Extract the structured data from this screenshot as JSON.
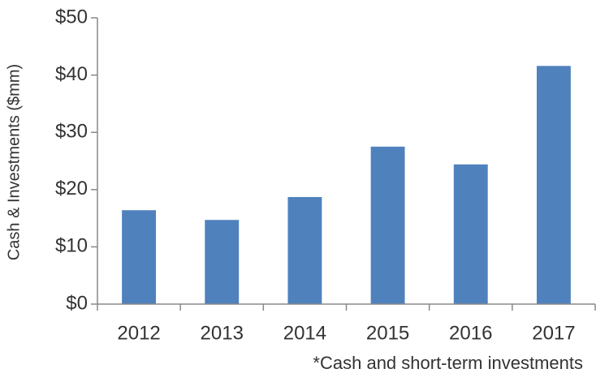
{
  "chart_data": {
    "type": "bar",
    "y_label": "Cash & Investments ($mm)",
    "footnote": "*Cash and short-term investments",
    "categories": [
      "2012",
      "2013",
      "2014",
      "2015",
      "2016",
      "2017"
    ],
    "values": [
      16.4,
      14.7,
      18.7,
      27.5,
      24.4,
      41.6
    ],
    "color": "#4f81bd",
    "ylim": [
      0,
      50
    ],
    "yticks": [
      {
        "value": 0,
        "label": "$0"
      },
      {
        "value": 10,
        "label": "$10"
      },
      {
        "value": 20,
        "label": "$20"
      },
      {
        "value": 30,
        "label": "$30"
      },
      {
        "value": 40,
        "label": "$40"
      },
      {
        "value": 50,
        "label": "$50"
      }
    ],
    "grid": false
  }
}
